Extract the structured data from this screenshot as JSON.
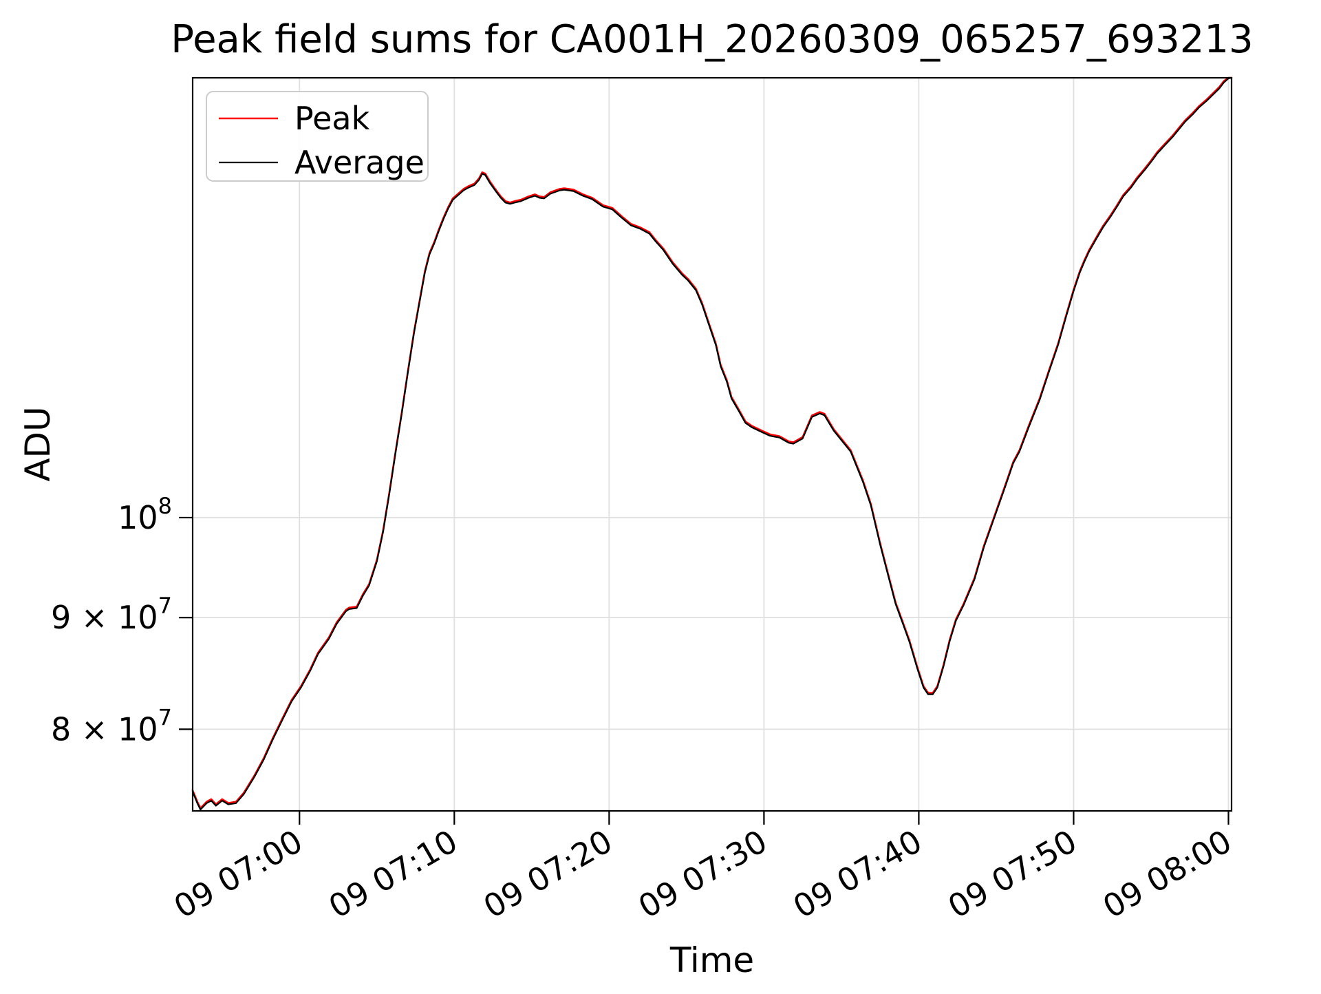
{
  "window": {
    "background": "#ffffff"
  },
  "chart_data": {
    "type": "line",
    "title": "Peak field sums for CA001H_20260309_065257_693213",
    "xlabel": "Time",
    "ylabel": "ADU",
    "y_scale": "log",
    "grid": true,
    "grid_color": "#e0e0e0",
    "spine_color": "#000000",
    "legend_position": "upper left",
    "legend": [
      {
        "name": "Peak",
        "color": "#ff0000"
      },
      {
        "name": "Average",
        "color": "#000000"
      }
    ],
    "x_ticks": [
      {
        "t": 60,
        "label": "09 07:00"
      },
      {
        "t": 70,
        "label": "09 07:10"
      },
      {
        "t": 80,
        "label": "09 07:20"
      },
      {
        "t": 90,
        "label": "09 07:30"
      },
      {
        "t": 100,
        "label": "09 07:40"
      },
      {
        "t": 110,
        "label": "09 07:50"
      },
      {
        "t": 120,
        "label": "09 08:00"
      }
    ],
    "y_ticks": [
      {
        "v": 100,
        "prefix": "",
        "base": "10",
        "exp": "8"
      },
      {
        "v": 90,
        "prefix": "9 × ",
        "base": "10",
        "exp": "7"
      },
      {
        "v": 80,
        "prefix": "8 × ",
        "base": "10",
        "exp": "7"
      }
    ],
    "x_range_minutes_after_0600": [
      53.1,
      120.2
    ],
    "y_range_adu_millions": [
      73.4,
      159.0
    ],
    "peak_over_average_factor": 1.0015,
    "points_unit": "[minutes after 06:00 on day 09, Average ADU in millions]",
    "points": [
      [
        53.1,
        74.9
      ],
      [
        53.4,
        74.0
      ],
      [
        53.6,
        73.5
      ],
      [
        54.0,
        74.0
      ],
      [
        54.3,
        74.2
      ],
      [
        54.6,
        73.8
      ],
      [
        55.0,
        74.2
      ],
      [
        55.4,
        73.9
      ],
      [
        55.9,
        74.0
      ],
      [
        56.4,
        74.7
      ],
      [
        57.1,
        76.1
      ],
      [
        57.7,
        77.5
      ],
      [
        58.3,
        79.2
      ],
      [
        58.9,
        80.8
      ],
      [
        59.5,
        82.4
      ],
      [
        60.1,
        83.6
      ],
      [
        60.7,
        85.1
      ],
      [
        61.2,
        86.6
      ],
      [
        61.9,
        88.0
      ],
      [
        62.4,
        89.4
      ],
      [
        63.0,
        90.6
      ],
      [
        63.2,
        90.8
      ],
      [
        63.7,
        90.9
      ],
      [
        64.1,
        92.1
      ],
      [
        64.5,
        93.1
      ],
      [
        65.0,
        95.5
      ],
      [
        65.4,
        98.5
      ],
      [
        65.8,
        102.5
      ],
      [
        66.2,
        107.0
      ],
      [
        66.6,
        111.5
      ],
      [
        67.0,
        116.5
      ],
      [
        67.4,
        121.5
      ],
      [
        67.8,
        126.0
      ],
      [
        68.1,
        129.5
      ],
      [
        68.4,
        132.0
      ],
      [
        68.7,
        133.5
      ],
      [
        69.0,
        135.3
      ],
      [
        69.3,
        137.0
      ],
      [
        69.6,
        138.5
      ],
      [
        69.9,
        139.8
      ],
      [
        70.3,
        140.6
      ],
      [
        70.6,
        141.2
      ],
      [
        70.9,
        141.6
      ],
      [
        71.3,
        142.0
      ],
      [
        71.6,
        142.8
      ],
      [
        71.8,
        143.7
      ],
      [
        72.0,
        143.5
      ],
      [
        72.3,
        142.3
      ],
      [
        72.7,
        141.0
      ],
      [
        73.0,
        140.1
      ],
      [
        73.3,
        139.4
      ],
      [
        73.6,
        139.2
      ],
      [
        73.9,
        139.4
      ],
      [
        74.3,
        139.6
      ],
      [
        74.8,
        140.1
      ],
      [
        75.2,
        140.4
      ],
      [
        75.5,
        140.1
      ],
      [
        75.8,
        140.0
      ],
      [
        76.2,
        140.7
      ],
      [
        76.8,
        141.2
      ],
      [
        77.1,
        141.3
      ],
      [
        77.7,
        141.1
      ],
      [
        78.3,
        140.4
      ],
      [
        78.9,
        139.9
      ],
      [
        79.6,
        138.8
      ],
      [
        80.2,
        138.4
      ],
      [
        80.8,
        137.2
      ],
      [
        81.4,
        136.1
      ],
      [
        82.0,
        135.6
      ],
      [
        82.6,
        134.9
      ],
      [
        83.0,
        133.8
      ],
      [
        83.5,
        132.6
      ],
      [
        84.1,
        130.7
      ],
      [
        84.7,
        129.2
      ],
      [
        85.1,
        128.4
      ],
      [
        85.6,
        127.1
      ],
      [
        86.0,
        125.2
      ],
      [
        86.4,
        122.8
      ],
      [
        86.9,
        119.9
      ],
      [
        87.2,
        117.3
      ],
      [
        87.6,
        115.4
      ],
      [
        87.9,
        113.4
      ],
      [
        88.4,
        111.8
      ],
      [
        88.8,
        110.5
      ],
      [
        89.2,
        110.0
      ],
      [
        89.9,
        109.4
      ],
      [
        90.4,
        109.0
      ],
      [
        91.0,
        108.8
      ],
      [
        91.6,
        108.2
      ],
      [
        91.9,
        108.1
      ],
      [
        92.5,
        108.7
      ],
      [
        93.1,
        111.2
      ],
      [
        93.6,
        111.6
      ],
      [
        93.9,
        111.4
      ],
      [
        94.5,
        109.6
      ],
      [
        95.6,
        107.2
      ],
      [
        96.4,
        103.8
      ],
      [
        96.9,
        101.3
      ],
      [
        97.5,
        97.2
      ],
      [
        98.0,
        94.2
      ],
      [
        98.5,
        91.3
      ],
      [
        99.0,
        89.3
      ],
      [
        99.4,
        87.7
      ],
      [
        99.9,
        85.3
      ],
      [
        100.3,
        83.6
      ],
      [
        100.6,
        83.0
      ],
      [
        100.9,
        83.0
      ],
      [
        101.2,
        83.6
      ],
      [
        101.6,
        85.5
      ],
      [
        102.0,
        87.8
      ],
      [
        102.4,
        89.7
      ],
      [
        102.9,
        91.2
      ],
      [
        103.6,
        93.7
      ],
      [
        104.2,
        96.9
      ],
      [
        104.9,
        100.1
      ],
      [
        105.6,
        103.4
      ],
      [
        106.1,
        105.9
      ],
      [
        106.5,
        107.2
      ],
      [
        107.1,
        110.0
      ],
      [
        107.8,
        113.2
      ],
      [
        108.4,
        116.6
      ],
      [
        109.0,
        120.0
      ],
      [
        109.5,
        123.5
      ],
      [
        110.0,
        127.0
      ],
      [
        110.4,
        129.5
      ],
      [
        110.7,
        131.0
      ],
      [
        111.0,
        132.4
      ],
      [
        111.5,
        134.3
      ],
      [
        111.9,
        135.8
      ],
      [
        112.4,
        137.4
      ],
      [
        112.8,
        138.8
      ],
      [
        113.2,
        140.3
      ],
      [
        113.7,
        141.6
      ],
      [
        114.1,
        142.9
      ],
      [
        114.6,
        144.3
      ],
      [
        115.0,
        145.5
      ],
      [
        115.4,
        146.8
      ],
      [
        115.9,
        148.1
      ],
      [
        116.4,
        149.4
      ],
      [
        116.8,
        150.6
      ],
      [
        117.2,
        151.8
      ],
      [
        117.7,
        153.0
      ],
      [
        118.1,
        154.1
      ],
      [
        118.6,
        155.2
      ],
      [
        119.0,
        156.2
      ],
      [
        119.4,
        157.2
      ],
      [
        119.7,
        158.2
      ],
      [
        120.0,
        158.9
      ],
      [
        120.2,
        159.0
      ]
    ]
  }
}
